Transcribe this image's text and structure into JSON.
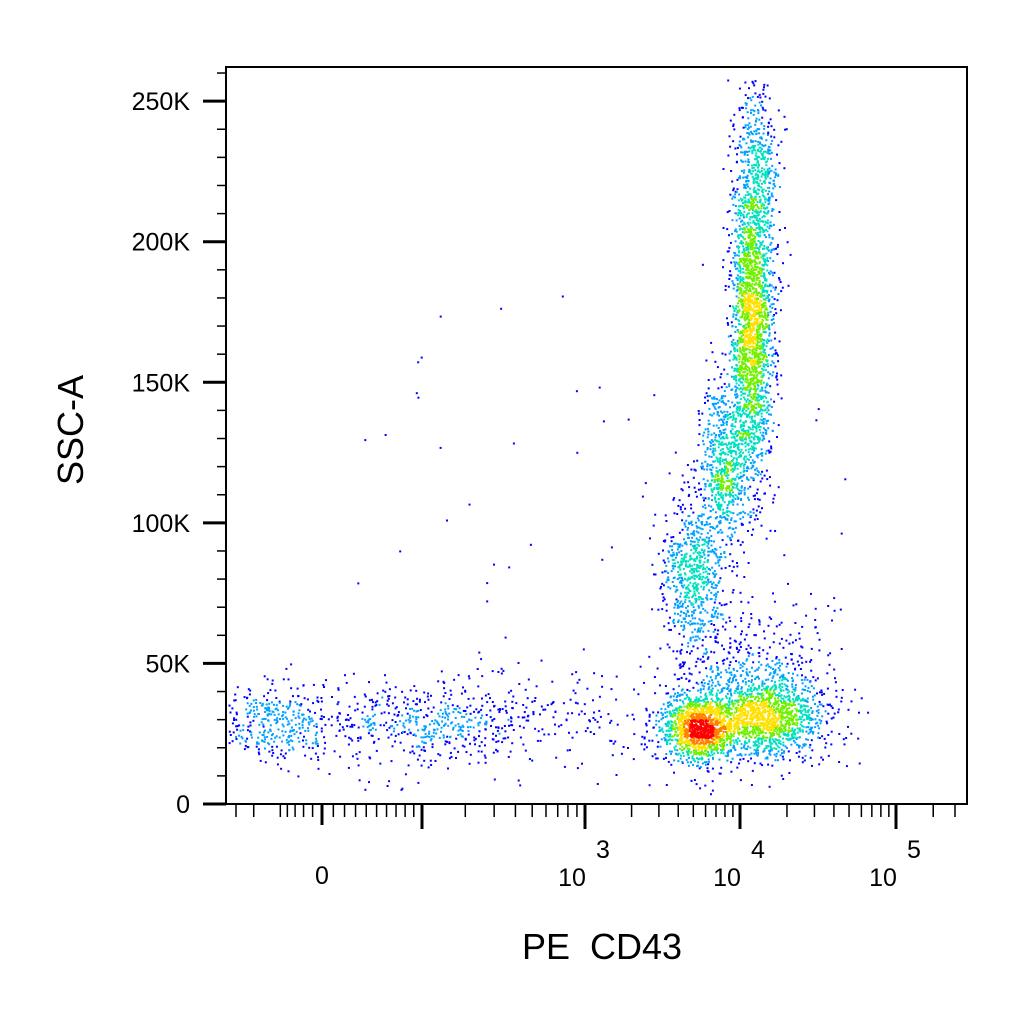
{
  "chart_data": {
    "type": "scatter",
    "style": "density-dot-plot",
    "xlabel": "PE  CD43",
    "ylabel": "SSC-A",
    "x_scale": "biexponential",
    "x_ticks": [
      {
        "label": "0",
        "value": 0
      },
      {
        "base": "10",
        "exp": "3",
        "value": 1000
      },
      {
        "base": "10",
        "exp": "4",
        "value": 10000
      },
      {
        "base": "10",
        "exp": "5",
        "value": 100000
      }
    ],
    "y_ticks": [
      {
        "label": "0",
        "value": 0
      },
      {
        "label": "50K",
        "value": 50000
      },
      {
        "label": "100K",
        "value": 100000
      },
      {
        "label": "150K",
        "value": 150000
      },
      {
        "label": "200K",
        "value": 200000
      },
      {
        "label": "250K",
        "value": 250000
      }
    ],
    "ylim": [
      0,
      262144
    ],
    "grid": false,
    "density_colors": [
      "#0000ff",
      "#00a0ff",
      "#00e0c0",
      "#70f000",
      "#ffe000",
      "#ff8000",
      "#ff0000"
    ],
    "populations": [
      {
        "x_center": 0,
        "x_spread_decades": 0.35,
        "y_center": 29000,
        "y_spread": 7000,
        "events": 700
      },
      {
        "x_center": 300,
        "x_spread_decades": 0.55,
        "y_center": 30000,
        "y_spread": 9000,
        "events": 260
      },
      {
        "x_center": 5500,
        "x_spread_decades": 0.12,
        "y_center": 27000,
        "y_spread": 6000,
        "events": 1300
      },
      {
        "x_center": 15000,
        "x_spread_decades": 0.18,
        "y_center": 31000,
        "y_spread": 7000,
        "events": 1300
      },
      {
        "x_center": 12000,
        "x_spread_decades": 0.28,
        "y_center": 45000,
        "y_spread": 14000,
        "events": 500
      },
      {
        "x_center": 5000,
        "x_spread_decades": 0.1,
        "y_center": 82000,
        "y_spread": 14000,
        "events": 650
      },
      {
        "x_center": 8000,
        "x_spread_decades": 0.08,
        "y_center": 120000,
        "y_spread": 15000,
        "events": 700
      },
      {
        "x_center": 12000,
        "x_spread_decades": 0.07,
        "y_center": 170000,
        "y_spread": 28000,
        "events": 2100
      },
      {
        "x_center": 13000,
        "x_spread_decades": 0.07,
        "y_center": 225000,
        "y_spread": 17000,
        "events": 450
      }
    ]
  }
}
